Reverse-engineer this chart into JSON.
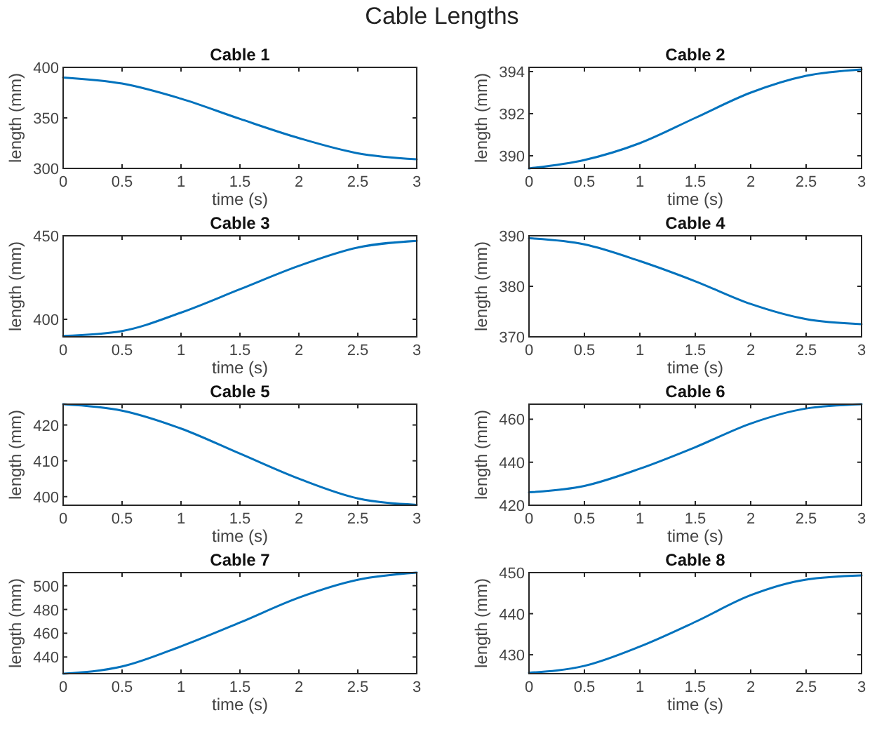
{
  "chart_data": [
    {
      "type": "line",
      "title": "Cable 1",
      "xlabel": "time (s)",
      "ylabel": "length (mm)",
      "annotations": [
        "Cable Lengths"
      ],
      "x": [
        0,
        0.5,
        1,
        1.5,
        2,
        2.5,
        3
      ],
      "series": [
        {
          "color": "#0072bd",
          "values": [
            390,
            384,
            369,
            349,
            330,
            315,
            309
          ]
        }
      ],
      "xlim": [
        0,
        3
      ],
      "xticks": [
        0,
        0.5,
        1,
        1.5,
        2,
        2.5,
        3
      ],
      "ylim": [
        300,
        400
      ],
      "yticks": [
        300,
        350,
        400
      ],
      "grid": false
    },
    {
      "type": "line",
      "title": "Cable 2",
      "xlabel": "time (s)",
      "ylabel": "length (mm)",
      "x": [
        0,
        0.5,
        1,
        1.5,
        2,
        2.5,
        3
      ],
      "series": [
        {
          "color": "#0072bd",
          "values": [
            389.4,
            389.8,
            390.6,
            391.8,
            393.0,
            393.8,
            394.1
          ]
        }
      ],
      "xlim": [
        0,
        3
      ],
      "xticks": [
        0,
        0.5,
        1,
        1.5,
        2,
        2.5,
        3
      ],
      "ylim": [
        389.4,
        394.2
      ],
      "yticks": [
        390,
        392,
        394
      ],
      "grid": false
    },
    {
      "type": "line",
      "title": "Cable 3",
      "xlabel": "time (s)",
      "ylabel": "length (mm)",
      "x": [
        0,
        0.5,
        1,
        1.5,
        2,
        2.5,
        3
      ],
      "series": [
        {
          "color": "#0072bd",
          "values": [
            390,
            393,
            404,
            418,
            432,
            443,
            447
          ]
        }
      ],
      "xlim": [
        0,
        3
      ],
      "xticks": [
        0,
        0.5,
        1,
        1.5,
        2,
        2.5,
        3
      ],
      "ylim": [
        389.5,
        450
      ],
      "yticks": [
        400,
        450
      ],
      "grid": false
    },
    {
      "type": "line",
      "title": "Cable 4",
      "xlabel": "time (s)",
      "ylabel": "length (mm)",
      "x": [
        0,
        0.5,
        1,
        1.5,
        2,
        2.5,
        3
      ],
      "series": [
        {
          "color": "#0072bd",
          "values": [
            389.5,
            388.3,
            385,
            381,
            376.5,
            373.5,
            372.5
          ]
        }
      ],
      "xlim": [
        0,
        3
      ],
      "xticks": [
        0,
        0.5,
        1,
        1.5,
        2,
        2.5,
        3
      ],
      "ylim": [
        370,
        390
      ],
      "yticks": [
        370,
        380,
        390
      ],
      "grid": false
    },
    {
      "type": "line",
      "title": "Cable 5",
      "xlabel": "time (s)",
      "ylabel": "length (mm)",
      "x": [
        0,
        0.5,
        1,
        1.5,
        2,
        2.5,
        3
      ],
      "series": [
        {
          "color": "#0072bd",
          "values": [
            425.8,
            424,
            419,
            412,
            405,
            399.5,
            397.7
          ]
        }
      ],
      "xlim": [
        0,
        3
      ],
      "xticks": [
        0,
        0.5,
        1,
        1.5,
        2,
        2.5,
        3
      ],
      "ylim": [
        397.6,
        425.8
      ],
      "yticks": [
        400,
        410,
        420
      ],
      "grid": false
    },
    {
      "type": "line",
      "title": "Cable 6",
      "xlabel": "time (s)",
      "ylabel": "length (mm)",
      "x": [
        0,
        0.5,
        1,
        1.5,
        2,
        2.5,
        3
      ],
      "series": [
        {
          "color": "#0072bd",
          "values": [
            426,
            429,
            437,
            447,
            458,
            465,
            467
          ]
        }
      ],
      "xlim": [
        0,
        3
      ],
      "xticks": [
        0,
        0.5,
        1,
        1.5,
        2,
        2.5,
        3
      ],
      "ylim": [
        420,
        467
      ],
      "yticks": [
        420,
        440,
        460
      ],
      "grid": false
    },
    {
      "type": "line",
      "title": "Cable 7",
      "xlabel": "time (s)",
      "ylabel": "length (mm)",
      "x": [
        0,
        0.5,
        1,
        1.5,
        2,
        2.5,
        3
      ],
      "series": [
        {
          "color": "#0072bd",
          "values": [
            426,
            432,
            449,
            469,
            490,
            505,
            511
          ]
        }
      ],
      "xlim": [
        0,
        3
      ],
      "xticks": [
        0,
        0.5,
        1,
        1.5,
        2,
        2.5,
        3
      ],
      "ylim": [
        426,
        511
      ],
      "yticks": [
        440,
        460,
        480,
        500
      ],
      "grid": false
    },
    {
      "type": "line",
      "title": "Cable 8",
      "xlabel": "time (s)",
      "ylabel": "length (mm)",
      "x": [
        0,
        0.5,
        1,
        1.5,
        2,
        2.5,
        3
      ],
      "series": [
        {
          "color": "#0072bd",
          "values": [
            425.6,
            427.3,
            432,
            438,
            444.5,
            448.3,
            449.3
          ]
        }
      ],
      "xlim": [
        0,
        3
      ],
      "xticks": [
        0,
        0.5,
        1,
        1.5,
        2,
        2.5,
        3
      ],
      "ylim": [
        425.4,
        450
      ],
      "yticks": [
        430,
        440,
        450
      ],
      "grid": false
    }
  ]
}
